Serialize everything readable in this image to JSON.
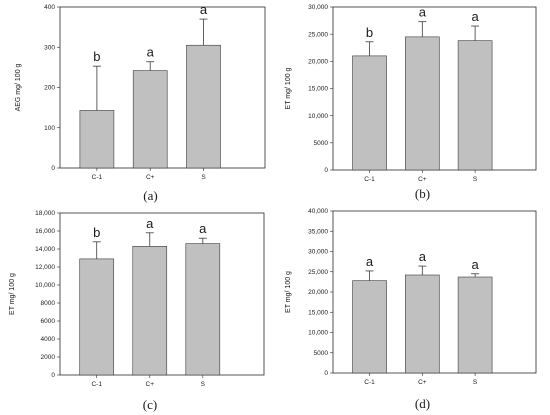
{
  "chart_data": [
    {
      "type": "bar",
      "panel_label": "(a)",
      "ylabel": "AEG mg/ 100 g",
      "categories": [
        "C-1",
        "C+",
        "S"
      ],
      "values": [
        143,
        242,
        305
      ],
      "errors": [
        110,
        22,
        65
      ],
      "significance": [
        "b",
        "a",
        "a"
      ],
      "ylim": [
        0,
        400
      ],
      "yticks": [
        "0",
        "100",
        "200",
        "300",
        "400"
      ]
    },
    {
      "type": "bar",
      "panel_label": "(b)",
      "ylabel": "ET mg/ 100 g",
      "categories": [
        "C-1",
        "C+",
        "S"
      ],
      "values": [
        21000,
        24500,
        23800
      ],
      "errors": [
        2600,
        2800,
        2700
      ],
      "significance": [
        "b",
        "a",
        "a"
      ],
      "ylim": [
        0,
        30000
      ],
      "yticks": [
        "0",
        "5000",
        "10,000",
        "15,000",
        "20,000",
        "25,000",
        "30,000"
      ]
    },
    {
      "type": "bar",
      "panel_label": "(c)",
      "ylabel": "ET mg/ 100 g",
      "categories": [
        "C-1",
        "C+",
        "S"
      ],
      "values": [
        12900,
        14300,
        14600
      ],
      "errors": [
        1900,
        1500,
        600
      ],
      "significance": [
        "b",
        "a",
        "a"
      ],
      "ylim": [
        0,
        18000
      ],
      "yticks": [
        "0",
        "2000",
        "4000",
        "6000",
        "8000",
        "10,000",
        "12,000",
        "14,000",
        "16,000",
        "18,000"
      ]
    },
    {
      "type": "bar",
      "panel_label": "(d)",
      "ylabel": "ET mg/ 100 g",
      "categories": [
        "C-1",
        "C+",
        "S"
      ],
      "values": [
        22800,
        24200,
        23700
      ],
      "errors": [
        2400,
        2200,
        800
      ],
      "significance": [
        "a",
        "a",
        "a"
      ],
      "ylim": [
        0,
        40000
      ],
      "yticks": [
        "0",
        "5000",
        "10,000",
        "15,000",
        "20,000",
        "25,000",
        "30,000",
        "35,000",
        "40,000"
      ]
    }
  ]
}
